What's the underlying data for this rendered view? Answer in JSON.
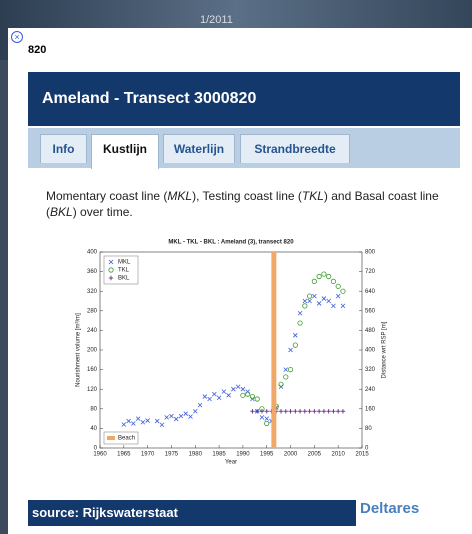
{
  "map": {
    "date_label": "1/2011"
  },
  "popup": {
    "id_label": "820",
    "title": "Ameland - Transect 3000820",
    "tabs": [
      "Info",
      "Kustlijn",
      "Waterlijn",
      "Strandbreedte"
    ],
    "active_tab": 1,
    "description": [
      "Momentary coast line (",
      "MKL",
      "), Testing coast line (",
      "TKL",
      ") and Basal coast line (",
      "BKL",
      ") over time."
    ],
    "source": "source: Rijkswaterstaat",
    "logo": "Deltares"
  },
  "chart_data": {
    "type": "scatter",
    "title": "MKL - TKL - BKL : Ameland (3), transect 820",
    "x_label": "Year",
    "y_label": "Nourishment volume [m³/m]",
    "y2_label": "Distance wrt RSP [m]",
    "xlim": [
      1960,
      2015
    ],
    "xticks": [
      1960,
      1965,
      1970,
      1975,
      1980,
      1985,
      1990,
      1995,
      2000,
      2005,
      2010,
      2015
    ],
    "ylim": [
      0,
      400
    ],
    "yticks": [
      0,
      40,
      80,
      120,
      160,
      200,
      240,
      280,
      320,
      360,
      400
    ],
    "y2lim": [
      0,
      800
    ],
    "y2ticks": [
      0,
      80,
      160,
      240,
      320,
      400,
      480,
      560,
      640,
      720,
      800
    ],
    "legend": "upper left",
    "series": [
      {
        "name": "MKL",
        "color": "#3a5bd9",
        "marker": "x",
        "axis": "y2",
        "x": [
          1965,
          1966,
          1967,
          1968,
          1969,
          1970,
          1972,
          1973,
          1974,
          1975,
          1976,
          1977,
          1978,
          1979,
          1980,
          1981,
          1982,
          1983,
          1984,
          1985,
          1986,
          1987,
          1988,
          1989,
          1990,
          1991,
          1992,
          1993,
          1994,
          1995,
          1996,
          1997,
          1998,
          1999,
          2000,
          2001,
          2002,
          2003,
          2004,
          2005,
          2006,
          2007,
          2008,
          2009,
          2010,
          2011
        ],
        "values": [
          96,
          110,
          100,
          120,
          105,
          112,
          110,
          95,
          125,
          130,
          118,
          130,
          140,
          128,
          150,
          175,
          210,
          200,
          220,
          205,
          230,
          215,
          240,
          250,
          240,
          230,
          200,
          150,
          125,
          120,
          110,
          165,
          250,
          320,
          400,
          460,
          550,
          600,
          600,
          620,
          590,
          610,
          600,
          580,
          620,
          580
        ]
      },
      {
        "name": "TKL",
        "color": "#3c9a2e",
        "marker": "o",
        "axis": "y2",
        "x": [
          1990,
          1991,
          1992,
          1993,
          1994,
          1995,
          1997,
          1998,
          1999,
          2000,
          2001,
          2002,
          2003,
          2004,
          2005,
          2006,
          2007,
          2008,
          2009,
          2010,
          2011
        ],
        "values": [
          215,
          220,
          210,
          200,
          160,
          100,
          170,
          260,
          290,
          320,
          420,
          510,
          580,
          620,
          680,
          700,
          710,
          700,
          680,
          660,
          640
        ]
      },
      {
        "name": "BKL",
        "color": "#6a2a8a",
        "marker": "+",
        "axis": "y2",
        "x": [
          1992,
          1993,
          1994,
          1995,
          1996,
          1997,
          1998,
          1999,
          2000,
          2001,
          2002,
          2003,
          2004,
          2005,
          2006,
          2007,
          2008,
          2009,
          2010,
          2011
        ],
        "values": [
          150,
          150,
          150,
          150,
          150,
          150,
          150,
          150,
          150,
          150,
          150,
          150,
          150,
          150,
          150,
          150,
          150,
          150,
          150,
          150
        ]
      },
      {
        "name": "Beach",
        "color": "#f0a868",
        "marker": "bar",
        "legend": "lower left",
        "x": [
          1996.5
        ],
        "values": [
          400
        ]
      }
    ]
  }
}
